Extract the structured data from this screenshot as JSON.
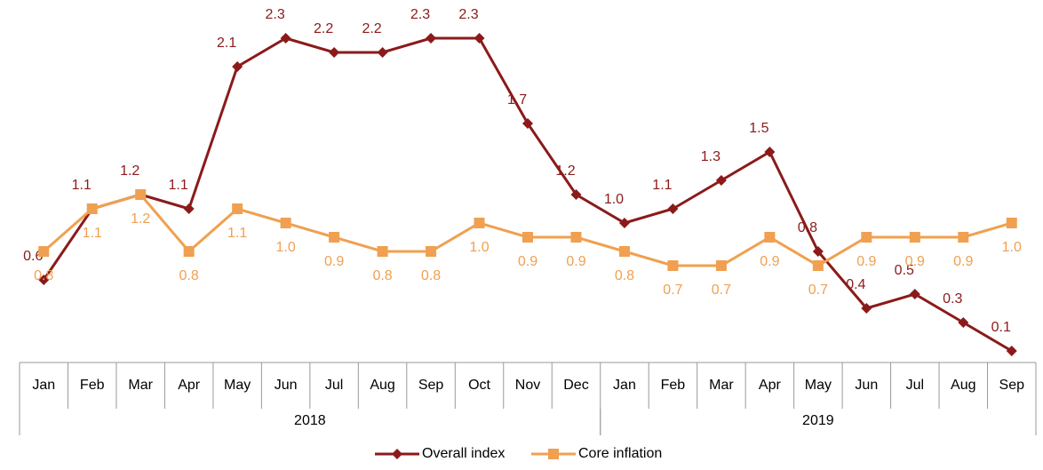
{
  "chart_data": {
    "type": "line",
    "categories": [
      "Jan",
      "Feb",
      "Mar",
      "Apr",
      "May",
      "Jun",
      "Jul",
      "Aug",
      "Sep",
      "Oct",
      "Nov",
      "Dec",
      "Jan",
      "Feb",
      "Mar",
      "Apr",
      "May",
      "Jun",
      "Jul",
      "Aug",
      "Sep"
    ],
    "year_groups": [
      {
        "name": "2018",
        "count": 12
      },
      {
        "name": "2019",
        "count": 9
      }
    ],
    "series": [
      {
        "name": "Overall index",
        "color": "#8b1a1a",
        "marker": "diamond",
        "values": [
          0.6,
          1.1,
          1.2,
          1.1,
          2.1,
          2.3,
          2.2,
          2.2,
          2.3,
          2.3,
          1.7,
          1.2,
          1.0,
          1.1,
          1.3,
          1.5,
          0.8,
          0.4,
          0.5,
          0.3,
          0.1
        ],
        "value_labels": [
          "0.6",
          "1.1",
          "1.2",
          "1.1",
          "2.1",
          "2.3",
          "2.2",
          "2.2",
          "2.3",
          "2.3",
          "1.7",
          "1.2",
          "1.0",
          "1.1",
          "1.3",
          "1.5",
          "0.8",
          "0.4",
          "0.5",
          "0.3",
          "0.1"
        ]
      },
      {
        "name": "Core inflation",
        "color": "#f0a050",
        "marker": "square",
        "values": [
          0.8,
          1.1,
          1.2,
          0.8,
          1.1,
          1.0,
          0.9,
          0.8,
          0.8,
          1.0,
          0.9,
          0.9,
          0.8,
          0.7,
          0.7,
          0.9,
          0.7,
          0.9,
          0.9,
          0.9,
          1.0
        ],
        "value_labels": [
          "0.8",
          "1.1",
          "1.2",
          "0.8",
          "1.1",
          "1.0",
          "0.9",
          "0.8",
          "0.8",
          "1.0",
          "0.9",
          "0.9",
          "0.8",
          "0.7",
          "0.7",
          "0.9",
          "0.7",
          "0.9",
          "0.9",
          "0.9",
          "1.0"
        ]
      }
    ]
  }
}
